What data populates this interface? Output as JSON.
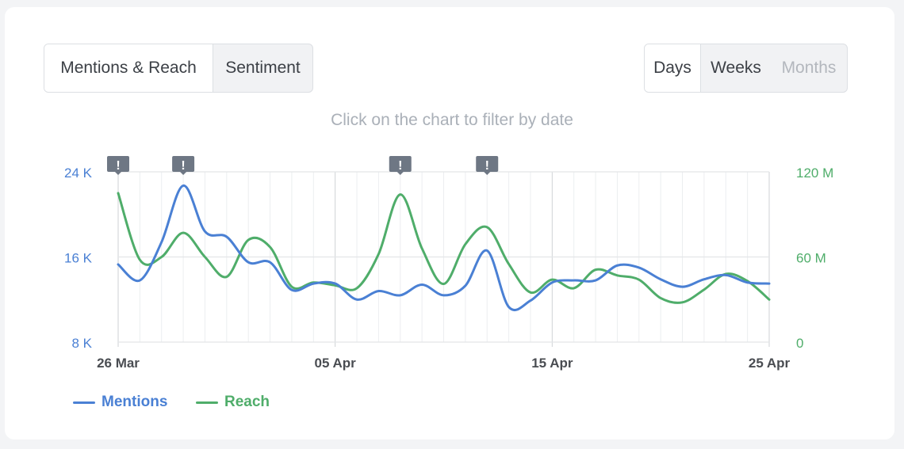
{
  "tabs": {
    "mentions_reach": "Mentions & Reach",
    "sentiment": "Sentiment"
  },
  "period": {
    "days": "Days",
    "weeks": "Weeks",
    "months": "Months"
  },
  "hint": "Click on the chart to filter by date",
  "alert_glyph": "!",
  "colors": {
    "mentions": "#4a80d4",
    "reach": "#4fad6a",
    "grid": "#e3e5e8",
    "tick": "#4a4d52",
    "alert": "#6e7784"
  },
  "chart_data": {
    "type": "line",
    "x_ticks": [
      "26 Mar",
      "05 Apr",
      "15 Apr",
      "25 Apr"
    ],
    "y_left": {
      "ticks": [
        "24 K",
        "16 K",
        "8 K"
      ],
      "ylim": [
        8000,
        24000
      ]
    },
    "y_right": {
      "ticks": [
        "120 M",
        "60 M",
        "0"
      ],
      "ylim": [
        0,
        120000000
      ]
    },
    "alerts": [
      "26 Mar",
      "29 Mar",
      "08 Apr",
      "12 Apr"
    ],
    "series": [
      {
        "name": "Mentions",
        "axis": "left",
        "x": [
          "26 Mar",
          "27 Mar",
          "28 Mar",
          "29 Mar",
          "30 Mar",
          "31 Mar",
          "01 Apr",
          "02 Apr",
          "03 Apr",
          "04 Apr",
          "05 Apr",
          "06 Apr",
          "07 Apr",
          "08 Apr",
          "09 Apr",
          "10 Apr",
          "11 Apr",
          "12 Apr",
          "13 Apr",
          "14 Apr",
          "15 Apr",
          "16 Apr",
          "17 Apr",
          "18 Apr",
          "19 Apr",
          "20 Apr",
          "21 Apr",
          "22 Apr",
          "23 Apr",
          "24 Apr",
          "25 Apr"
        ],
        "y": [
          15300,
          13800,
          17400,
          22700,
          18400,
          17900,
          15500,
          15500,
          12900,
          13500,
          13500,
          12000,
          12800,
          12400,
          13400,
          12400,
          13300,
          16600,
          11300,
          11900,
          13600,
          13800,
          13800,
          15200,
          15000,
          13900,
          13200,
          13900,
          14300,
          13600,
          13500
        ]
      },
      {
        "name": "Reach",
        "axis": "right",
        "x": [
          "26 Mar",
          "27 Mar",
          "28 Mar",
          "29 Mar",
          "30 Mar",
          "31 Mar",
          "01 Apr",
          "02 Apr",
          "03 Apr",
          "04 Apr",
          "05 Apr",
          "06 Apr",
          "07 Apr",
          "08 Apr",
          "09 Apr",
          "10 Apr",
          "11 Apr",
          "12 Apr",
          "13 Apr",
          "14 Apr",
          "15 Apr",
          "16 Apr",
          "17 Apr",
          "18 Apr",
          "19 Apr",
          "20 Apr",
          "21 Apr",
          "22 Apr",
          "23 Apr",
          "24 Apr",
          "25 Apr"
        ],
        "y": [
          105000000,
          58000000,
          60000000,
          77000000,
          60000000,
          46000000,
          72000000,
          67000000,
          39000000,
          42000000,
          40000000,
          38000000,
          62000000,
          104000000,
          66000000,
          41000000,
          69000000,
          81000000,
          55000000,
          35000000,
          44000000,
          38000000,
          51000000,
          47000000,
          44000000,
          31000000,
          28000000,
          37000000,
          48000000,
          43000000,
          30000000
        ]
      }
    ]
  }
}
